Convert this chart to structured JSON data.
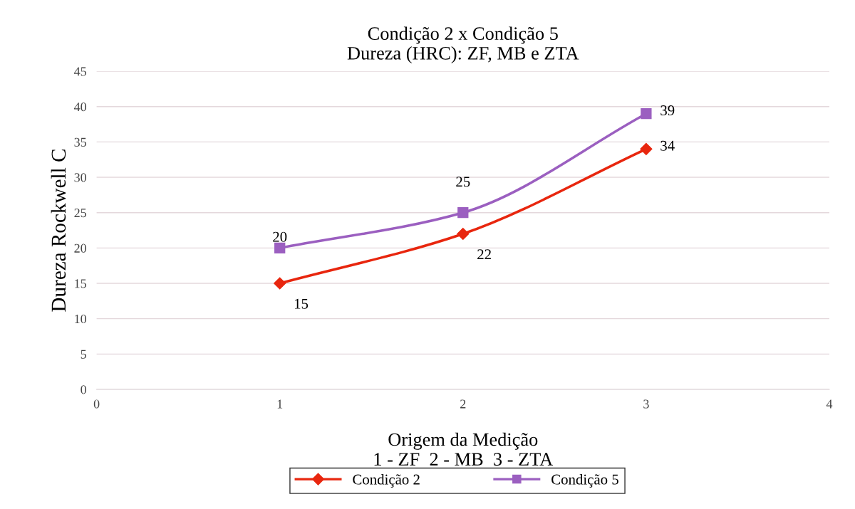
{
  "chart_data": {
    "type": "line",
    "title": "Condição 2 x Condição 5\nDureza (HRC): ZF, MB e ZTA",
    "xlabel": "Origem da Medição\n1 - ZF  2 - MB  3 - ZTA",
    "ylabel": "Dureza Rockwell C",
    "x": [
      1,
      2,
      3
    ],
    "series": [
      {
        "name": "Condição 2",
        "color": "#e8260e",
        "values": [
          15,
          22,
          34
        ],
        "marker": "diamond"
      },
      {
        "name": "Condição 5",
        "color": "#9b5fc0",
        "values": [
          20,
          25,
          39
        ],
        "marker": "square"
      }
    ],
    "xlim": [
      0,
      4
    ],
    "xticks": [
      0,
      1,
      2,
      3,
      4
    ],
    "ylim": [
      0,
      45
    ],
    "yticks": [
      0,
      5,
      10,
      15,
      20,
      25,
      30,
      35,
      40,
      45
    ],
    "grid": "y",
    "legend": "bottom",
    "data_labels": true,
    "line_style": "solid"
  }
}
